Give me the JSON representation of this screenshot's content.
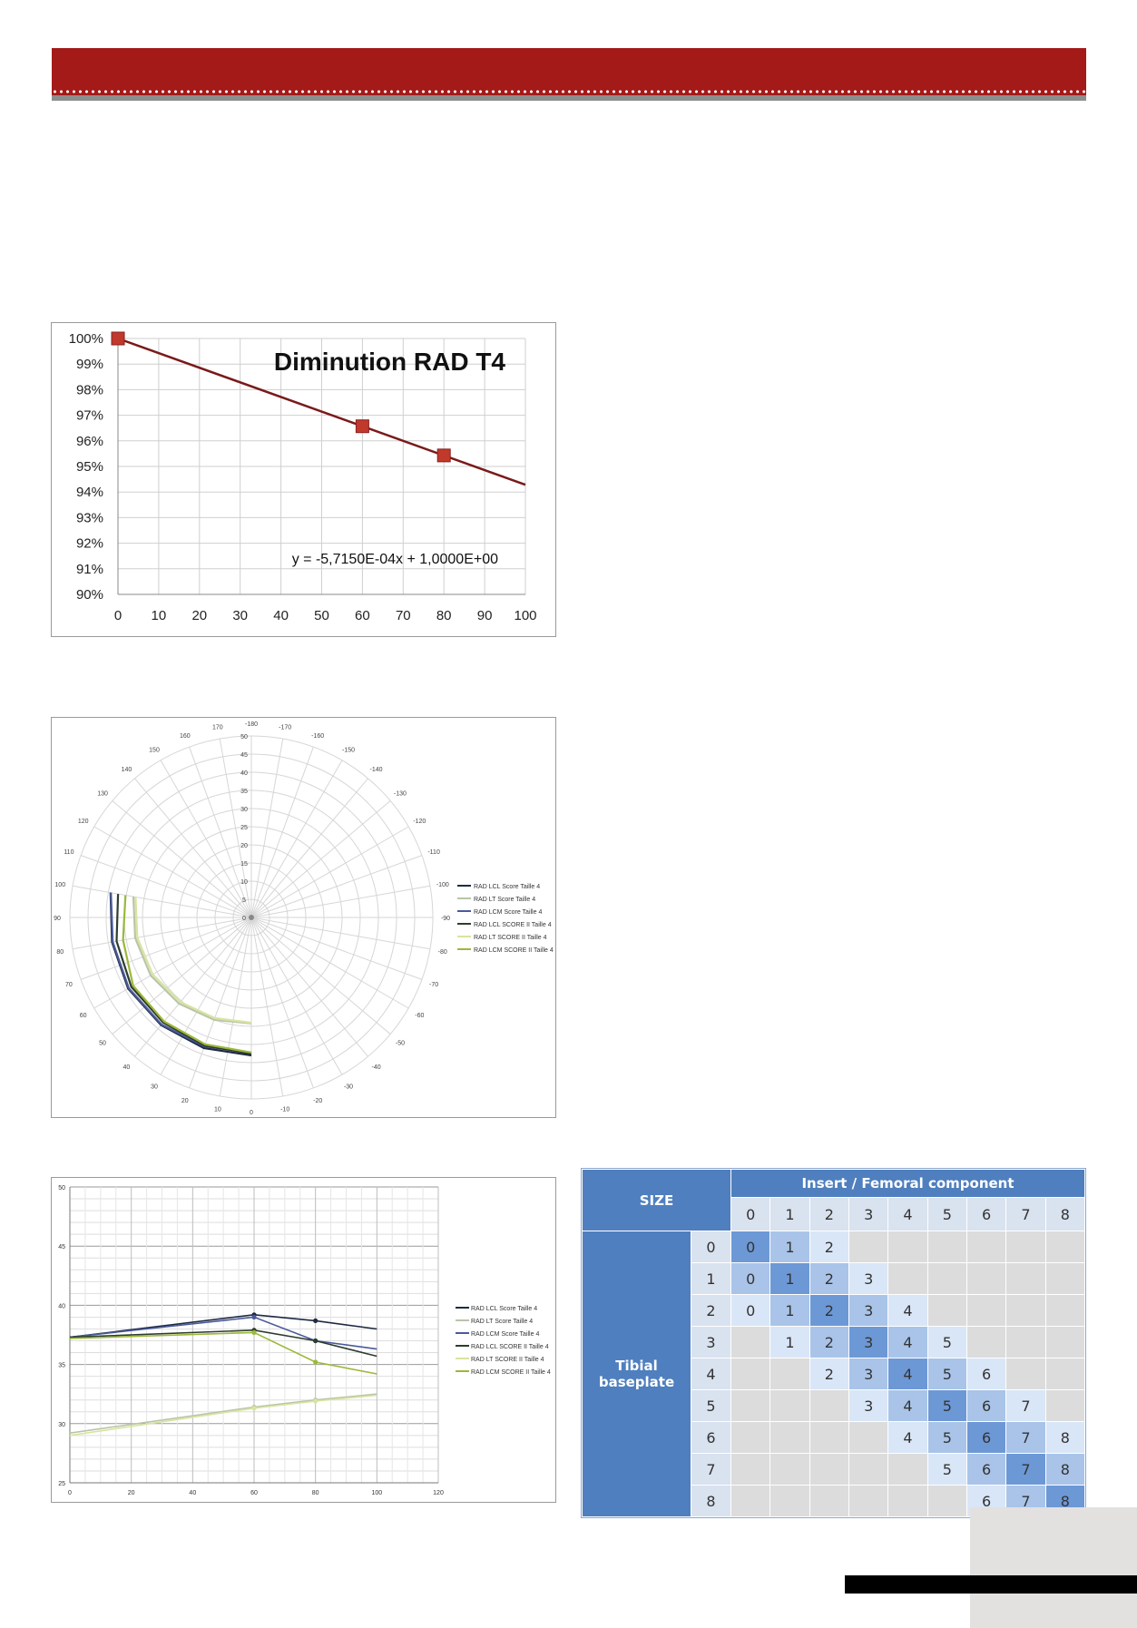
{
  "chart_data": [
    {
      "type": "line",
      "title": "Diminution RAD T4",
      "equation": "y = -5,7150E-04x + 1,0000E+00",
      "x_ticks": [
        "0",
        "10",
        "20",
        "30",
        "40",
        "50",
        "60",
        "70",
        "80",
        "90",
        "100"
      ],
      "y_ticks": [
        "100%",
        "99%",
        "98%",
        "97%",
        "96%",
        "95%",
        "94%",
        "93%",
        "92%",
        "91%",
        "90%"
      ],
      "xlim": [
        0,
        100
      ],
      "ylim": [
        0.9,
        1.0
      ],
      "grid": true,
      "trendline": {
        "slope": -0.0005715,
        "intercept": 1.0,
        "color": "#7a1a1a"
      },
      "series": [
        {
          "x": [
            0,
            60,
            80
          ],
          "y": [
            1.0,
            0.9657,
            0.9543
          ],
          "color": "#c0392b",
          "marker": "square"
        }
      ]
    },
    {
      "type": "polar",
      "title": "",
      "radial_ticks": [
        "0",
        "5",
        "10",
        "15",
        "20",
        "25",
        "30",
        "35",
        "40",
        "45",
        "50"
      ],
      "rlim": [
        0,
        50
      ],
      "angle_labels": [
        "0",
        "10",
        "20",
        "30",
        "40",
        "50",
        "60",
        "70",
        "80",
        "90",
        "100",
        "110",
        "120",
        "130",
        "140",
        "150",
        "160",
        "170",
        "-180",
        "-170",
        "-160",
        "-150",
        "-140",
        "-130",
        "-120",
        "-110",
        "-100",
        "-90",
        "-80",
        "-70",
        "-60",
        "-50",
        "-40",
        "-30",
        "-20",
        "-10"
      ],
      "legend_position": "right",
      "series": [
        {
          "name": "RAD LCL Score Taille 4",
          "color": "#1f2a44",
          "theta": [
            0,
            20,
            40,
            60,
            80,
            100
          ],
          "r": [
            38.0,
            38.3,
            38.7,
            39.2,
            39.0,
            39.4
          ]
        },
        {
          "name": "RAD LT Score Taille 4",
          "color": "#b8c5a8",
          "theta": [
            0,
            20,
            40,
            60,
            80,
            100
          ],
          "r": [
            29.2,
            30.0,
            31.0,
            32.0,
            32.5,
            33.0
          ]
        },
        {
          "name": "RAD LCM Score Taille 4",
          "color": "#4a5a9a",
          "theta": [
            0,
            20,
            40,
            60,
            80,
            100
          ],
          "r": [
            37.3,
            37.8,
            38.5,
            39.0,
            38.8,
            39.3
          ]
        },
        {
          "name": "RAD LCL SCORE II Taille 4",
          "color": "#2e3d2e",
          "theta": [
            0,
            20,
            40,
            60,
            80,
            100
          ],
          "r": [
            37.5,
            37.6,
            37.8,
            38.2,
            37.7,
            37.3
          ]
        },
        {
          "name": "RAD LT SCORE II Taille 4",
          "color": "#d8e4a0",
          "theta": [
            0,
            20,
            40,
            60,
            80,
            100
          ],
          "r": [
            29.0,
            29.5,
            30.4,
            31.4,
            31.9,
            32.4
          ]
        },
        {
          "name": "RAD LCM SCORE II Taille 4",
          "color": "#9cb83a",
          "theta": [
            0,
            20,
            40,
            60,
            80,
            100
          ],
          "r": [
            37.2,
            37.2,
            37.4,
            37.6,
            35.9,
            35.2
          ]
        }
      ]
    },
    {
      "type": "line",
      "title": "",
      "x_ticks": [
        "0",
        "20",
        "40",
        "60",
        "80",
        "100",
        "120"
      ],
      "y_ticks": [
        "25",
        "30",
        "35",
        "40",
        "45",
        "50"
      ],
      "xlim": [
        0,
        120
      ],
      "ylim": [
        25,
        50
      ],
      "grid": true,
      "legend_position": "right",
      "series": [
        {
          "name": "RAD LCL Score Taille 4",
          "color": "#1f2a44",
          "x": [
            0,
            60,
            80,
            100
          ],
          "y": [
            37.3,
            39.2,
            38.7,
            38.0
          ]
        },
        {
          "name": "RAD LT Score Taille 4",
          "color": "#b8c5a8",
          "x": [
            0,
            60,
            80,
            100
          ],
          "y": [
            29.2,
            31.4,
            32.0,
            32.5
          ]
        },
        {
          "name": "RAD LCM Score Taille 4",
          "color": "#4a5a9a",
          "x": [
            0,
            60,
            80,
            100
          ],
          "y": [
            37.3,
            39.0,
            37.0,
            36.3
          ]
        },
        {
          "name": "RAD LCL SCORE II Taille 4",
          "color": "#2e3d2e",
          "x": [
            0,
            60,
            80,
            100
          ],
          "y": [
            37.3,
            37.9,
            37.0,
            35.7
          ]
        },
        {
          "name": "RAD LT SCORE II Taille 4",
          "color": "#d8e4a0",
          "x": [
            0,
            60,
            80,
            100
          ],
          "y": [
            29.0,
            31.3,
            31.9,
            32.4
          ]
        },
        {
          "name": "RAD LCM SCORE II Taille 4",
          "color": "#9cb83a",
          "x": [
            0,
            60,
            80,
            100
          ],
          "y": [
            37.2,
            37.7,
            35.2,
            34.2
          ]
        }
      ]
    }
  ],
  "size_table": {
    "corner_label": "SIZE",
    "col_group_label": "Insert / Femoral component",
    "row_group_label": "Tibial baseplate",
    "columns": [
      "0",
      "1",
      "2",
      "3",
      "4",
      "5",
      "6",
      "7",
      "8"
    ],
    "rows": [
      {
        "label": "0",
        "cells": [
          "0",
          "1",
          "2",
          "",
          "",
          "",
          "",
          "",
          ""
        ],
        "shade": [
          3,
          2,
          1,
          0,
          0,
          0,
          0,
          0,
          0
        ]
      },
      {
        "label": "1",
        "cells": [
          "0",
          "1",
          "2",
          "3",
          "",
          "",
          "",
          "",
          ""
        ],
        "shade": [
          2,
          3,
          2,
          1,
          0,
          0,
          0,
          0,
          0
        ]
      },
      {
        "label": "2",
        "cells": [
          "0",
          "1",
          "2",
          "3",
          "4",
          "",
          "",
          "",
          ""
        ],
        "shade": [
          1,
          2,
          3,
          2,
          1,
          0,
          0,
          0,
          0
        ]
      },
      {
        "label": "3",
        "cells": [
          "",
          "1",
          "2",
          "3",
          "4",
          "5",
          "",
          "",
          ""
        ],
        "shade": [
          0,
          1,
          2,
          3,
          2,
          1,
          0,
          0,
          0
        ]
      },
      {
        "label": "4",
        "cells": [
          "",
          "",
          "2",
          "3",
          "4",
          "5",
          "6",
          "",
          ""
        ],
        "shade": [
          0,
          0,
          1,
          2,
          3,
          2,
          1,
          0,
          0
        ]
      },
      {
        "label": "5",
        "cells": [
          "",
          "",
          "",
          "3",
          "4",
          "5",
          "6",
          "7",
          ""
        ],
        "shade": [
          0,
          0,
          0,
          1,
          2,
          3,
          2,
          1,
          0
        ]
      },
      {
        "label": "6",
        "cells": [
          "",
          "",
          "",
          "",
          "4",
          "5",
          "6",
          "7",
          "8"
        ],
        "shade": [
          0,
          0,
          0,
          0,
          1,
          2,
          3,
          2,
          1
        ]
      },
      {
        "label": "7",
        "cells": [
          "",
          "",
          "",
          "",
          "",
          "5",
          "6",
          "7",
          "8"
        ],
        "shade": [
          0,
          0,
          0,
          0,
          0,
          1,
          2,
          3,
          2
        ]
      },
      {
        "label": "8",
        "cells": [
          "",
          "",
          "",
          "",
          "",
          "",
          "6",
          "7",
          "8"
        ],
        "shade": [
          0,
          0,
          0,
          0,
          0,
          0,
          1,
          2,
          3
        ]
      }
    ]
  }
}
